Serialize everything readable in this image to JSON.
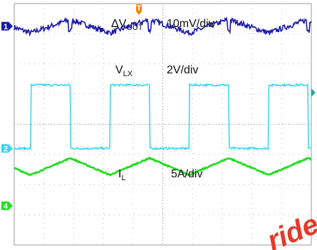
{
  "chart_data": {
    "type": "line",
    "title": "",
    "xlabel": "",
    "ylabel": "",
    "grid": true,
    "divisions": {
      "horizontal": 10,
      "vertical": 8
    },
    "series": [
      {
        "id": "vout",
        "label_main": "ΔV",
        "label_sub": "OUT",
        "scale": "10mV/div",
        "color": "#1a1aa8",
        "waveform": "ripple",
        "level_div": 7.25,
        "amplitude_div": 0.45
      },
      {
        "id": "vlx",
        "label_main": "V",
        "label_sub": "LX",
        "scale": "2V/div",
        "color": "#33d6f0",
        "waveform": "square",
        "high_div": 5.3,
        "low_div": 3.2,
        "period_div": 2.67,
        "duty": 0.5
      },
      {
        "id": "il",
        "label_main": "I",
        "label_sub": "L",
        "scale": "5A/div",
        "color": "#22dd22",
        "waveform": "triangle",
        "center_div": 2.6,
        "amplitude_div": 0.28,
        "period_div": 2.67
      }
    ],
    "channel_markers": [
      {
        "number": "1",
        "color": "#1a1aa8",
        "level_div": 7.25
      },
      {
        "number": "2",
        "color": "#33d6f0",
        "level_div": 3.2
      },
      {
        "number": "4",
        "color": "#22dd22",
        "level_div": 1.3
      }
    ],
    "trigger_marker": {
      "label": "T",
      "color": "#ee8800"
    },
    "watermark": "ride"
  }
}
